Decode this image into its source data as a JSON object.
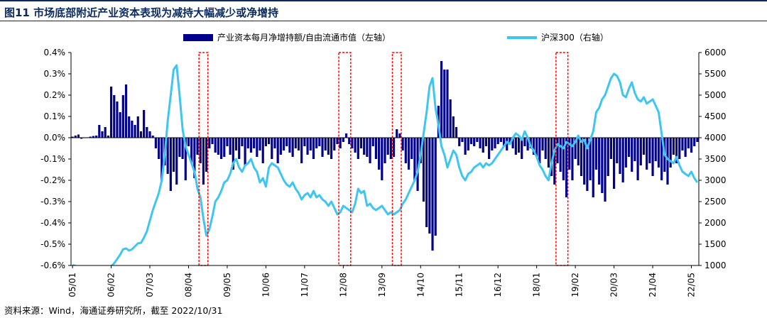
{
  "header": {
    "title": "图11 市场底部附近产业资本表现为减持大幅减少或净增持"
  },
  "footer": {
    "source": "资料来源：Wind，海通证券研究所，截至 2022/10/31"
  },
  "chart_data": {
    "type": "bar+line",
    "title": "图11 市场底部附近产业资本表现为减持大幅减少或净增持",
    "legend_position": "top",
    "grid": false,
    "x_tick_labels": [
      "05/01",
      "06/02",
      "07/03",
      "08/04",
      "09/05",
      "10/06",
      "11/07",
      "12/08",
      "13/09",
      "14/10",
      "15/11",
      "16/12",
      "18/01",
      "19/02",
      "20/03",
      "21/04",
      "22/05"
    ],
    "x_tick_months": [
      0,
      13,
      26,
      39,
      52,
      65,
      78,
      91,
      104,
      117,
      130,
      143,
      156,
      169,
      182,
      195,
      208
    ],
    "y_left": {
      "ylim": [
        -0.6,
        0.4
      ],
      "ticks": [
        "0.4%",
        "0.3%",
        "0.2%",
        "0.1%",
        "0.0%",
        "-0.1%",
        "-0.2%",
        "-0.3%",
        "-0.4%",
        "-0.5%",
        "-0.6%"
      ]
    },
    "y_right": {
      "ylim": [
        1000,
        6000
      ],
      "ticks": [
        "6000",
        "5500",
        "5000",
        "4500",
        "4000",
        "3500",
        "3000",
        "2500",
        "2000",
        "1500",
        "1000"
      ]
    },
    "highlight_ranges": [
      [
        43,
        45
      ],
      [
        90,
        93
      ],
      [
        108,
        110
      ],
      [
        163,
        166
      ]
    ],
    "series": [
      {
        "name": "产业资本每月净增持额/自由流通市值（左轴）",
        "axis": "left",
        "type": "bar",
        "color": "#00008b",
        "values": [
          0.005,
          0.01,
          0.015,
          -0.005,
          -0.002,
          0.002,
          0.005,
          0.008,
          0.01,
          0.06,
          0.03,
          0.05,
          0.01,
          0.24,
          0.2,
          0.17,
          0.12,
          0.2,
          0.25,
          0.1,
          0.08,
          0.06,
          0.1,
          0.03,
          0.13,
          0.05,
          0.03,
          0.01,
          -0.05,
          -0.1,
          -0.2,
          -0.13,
          -0.17,
          -0.25,
          -0.16,
          -0.22,
          -0.09,
          -0.1,
          -0.2,
          -0.04,
          -0.12,
          -0.19,
          -0.08,
          -0.12,
          -0.22,
          -0.16,
          -0.05,
          -0.03,
          -0.07,
          -0.08,
          -0.1,
          -0.09,
          -0.04,
          -0.08,
          -0.15,
          -0.06,
          -0.1,
          -0.04,
          -0.13,
          -0.05,
          -0.07,
          -0.05,
          -0.09,
          -0.06,
          -0.12,
          -0.04,
          -0.03,
          -0.1,
          -0.05,
          -0.12,
          -0.08,
          -0.06,
          -0.04,
          -0.07,
          -0.09,
          -0.05,
          -0.06,
          -0.12,
          -0.04,
          -0.08,
          -0.06,
          -0.1,
          -0.05,
          -0.04,
          -0.09,
          -0.06,
          -0.08,
          -0.1,
          -0.06,
          -0.03,
          -0.05,
          -0.02,
          0.02,
          -0.03,
          -0.05,
          -0.07,
          -0.1,
          -0.05,
          -0.08,
          -0.09,
          -0.12,
          -0.04,
          -0.1,
          -0.15,
          -0.2,
          -0.12,
          -0.08,
          -0.1,
          -0.09,
          0.04,
          0.02,
          -0.06,
          -0.12,
          -0.15,
          -0.1,
          -0.2,
          -0.25,
          -0.12,
          -0.3,
          -0.42,
          -0.45,
          -0.53,
          -0.46,
          0.15,
          0.36,
          0.32,
          0.32,
          0.18,
          0.1,
          0.05,
          -0.04,
          -0.02,
          -0.08,
          -0.06,
          -0.03,
          -0.04,
          -0.02,
          -0.05,
          -0.07,
          -0.04,
          -0.1,
          -0.06,
          -0.05,
          -0.03,
          -0.02,
          -0.04,
          -0.06,
          -0.03,
          -0.05,
          -0.08,
          -0.07,
          -0.1,
          -0.04,
          -0.06,
          -0.05,
          -0.08,
          -0.09,
          -0.12,
          -0.06,
          -0.1,
          -0.14,
          -0.18,
          -0.22,
          -0.12,
          -0.16,
          -0.2,
          -0.28,
          -0.15,
          -0.2,
          -0.1,
          -0.13,
          -0.18,
          -0.22,
          -0.25,
          -0.2,
          -0.28,
          -0.15,
          -0.22,
          -0.26,
          -0.3,
          -0.18,
          -0.1,
          -0.24,
          -0.12,
          -0.17,
          -0.21,
          -0.14,
          -0.09,
          -0.16,
          -0.11,
          -0.2,
          -0.13,
          -0.08,
          -0.15,
          -0.12,
          -0.18,
          -0.11,
          -0.14,
          -0.2,
          -0.16,
          -0.22,
          -0.14,
          -0.08,
          -0.12,
          -0.1,
          -0.06,
          -0.09,
          -0.05,
          -0.07,
          -0.04,
          -0.02
        ]
      },
      {
        "name": "沪深300（右轴）",
        "axis": "right",
        "type": "line",
        "color": "#3ec6f0",
        "values": [
          1010,
          990,
          950,
          920,
          890,
          870,
          860,
          880,
          900,
          910,
          920,
          930,
          940,
          980,
          1050,
          1150,
          1250,
          1380,
          1400,
          1350,
          1380,
          1450,
          1520,
          1530,
          1650,
          1800,
          2050,
          2300,
          2500,
          2700,
          3000,
          3600,
          4400,
          5000,
          5600,
          5700,
          5000,
          4200,
          3800,
          3600,
          3400,
          3200,
          2800,
          2600,
          2100,
          1700,
          1850,
          2150,
          2500,
          2600,
          2750,
          2950,
          3000,
          3150,
          3400,
          3500,
          3300,
          3200,
          3350,
          3400,
          3500,
          3300,
          3200,
          2950,
          3050,
          2850,
          3300,
          3400,
          3350,
          3300,
          3150,
          3000,
          2900,
          2850,
          2950,
          2800,
          2700,
          2550,
          2650,
          2700,
          2600,
          2750,
          2600,
          2650,
          2550,
          2500,
          2400,
          2500,
          2350,
          2200,
          2250,
          2400,
          2350,
          2300,
          2250,
          2450,
          2800,
          2700,
          2750,
          2400,
          2450,
          2350,
          2300,
          2350,
          2400,
          2300,
          2200,
          2250,
          2200,
          2250,
          2300,
          2450,
          2550,
          2700,
          2850,
          3000,
          3200,
          3600,
          4100,
          4600,
          5200,
          5400,
          4700,
          4300,
          3800,
          3600,
          3300,
          3500,
          3700,
          3600,
          3300,
          3100,
          3000,
          3150,
          3200,
          3300,
          3350,
          3400,
          3300,
          3400,
          3350,
          3400,
          3500,
          3600,
          3700,
          3800,
          3900,
          3850,
          4000,
          4100,
          4050,
          3950,
          4150,
          4000,
          3800,
          3700,
          3550,
          3350,
          3250,
          3100,
          3000,
          3400,
          3700,
          3850,
          3800,
          3750,
          3900,
          3850,
          3800,
          3900,
          4050,
          3900,
          3950,
          3750,
          3950,
          4150,
          4600,
          4700,
          4900,
          5000,
          5200,
          5400,
          5500,
          5450,
          5300,
          5000,
          4950,
          5150,
          5300,
          5050,
          4900,
          4850,
          4950,
          4800,
          4850,
          4900,
          4750,
          4600,
          4100,
          3600,
          3500,
          3450,
          3400,
          3550,
          3350,
          3200,
          3150,
          3100,
          3200,
          3050,
          2950
        ]
      }
    ]
  }
}
